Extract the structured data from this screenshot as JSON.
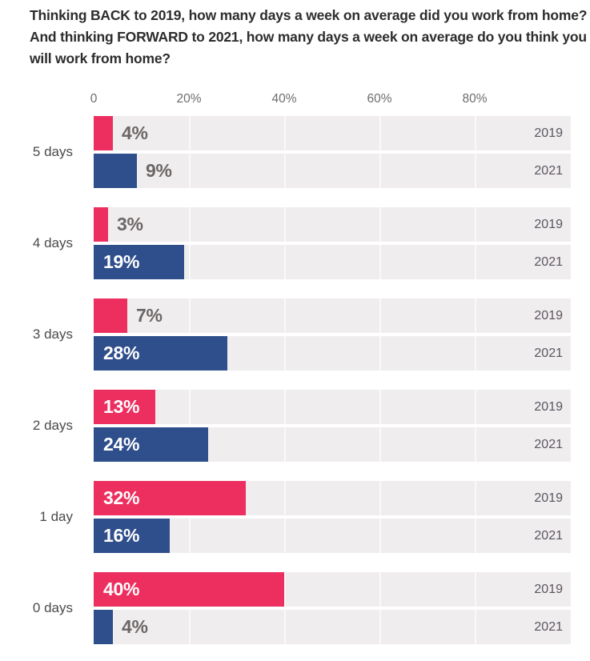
{
  "title_lines": [
    "Thinking BACK to 2019, how many days a week on average did you work from home?",
    "And thinking FORWARD to 2021, how many days a week on average do you think you",
    "will work from home?"
  ],
  "colors": {
    "pink_2019": "#ec2f5f",
    "blue_2021": "#2f4e8c",
    "track_background": "#f0edee",
    "gridline": "#faf8f9",
    "title_text": "#2d2d2d",
    "category_text": "#4a4a4a",
    "axis_text": "#6d6d6d",
    "year_text": "#5a5560",
    "value_outside_text": "#6b6766",
    "value_inside_text": "#ffffff"
  },
  "chart_data": {
    "type": "bar",
    "orientation": "horizontal",
    "title": "Thinking BACK to 2019, how many days a week on average did you work from home? And thinking FORWARD to 2021, how many days a week on average do you think you will work from home?",
    "categories": [
      "5 days",
      "4 days",
      "3 days",
      "2 days",
      "1 day",
      "0 days"
    ],
    "series": [
      {
        "name": "2019",
        "color_key": "pink_2019",
        "values": [
          4,
          3,
          7,
          13,
          32,
          40
        ],
        "labels": [
          "4%",
          "3%",
          "7%",
          "13%",
          "32%",
          "40%"
        ]
      },
      {
        "name": "2021",
        "color_key": "blue_2021",
        "values": [
          9,
          19,
          28,
          24,
          16,
          4
        ],
        "labels": [
          "9%",
          "19%",
          "28%",
          "24%",
          "16%",
          "4%"
        ]
      }
    ],
    "x_ticks": [
      {
        "label": "0",
        "pct": 0
      },
      {
        "label": "20%",
        "pct": 20
      },
      {
        "label": "40%",
        "pct": 40
      },
      {
        "label": "60%",
        "pct": 60
      },
      {
        "label": "80%",
        "pct": 80
      }
    ],
    "xlim": [
      0,
      100
    ],
    "value_suffix": "%",
    "inside_label_threshold": 13,
    "grid": true,
    "legend_position": "per-bar-right"
  }
}
